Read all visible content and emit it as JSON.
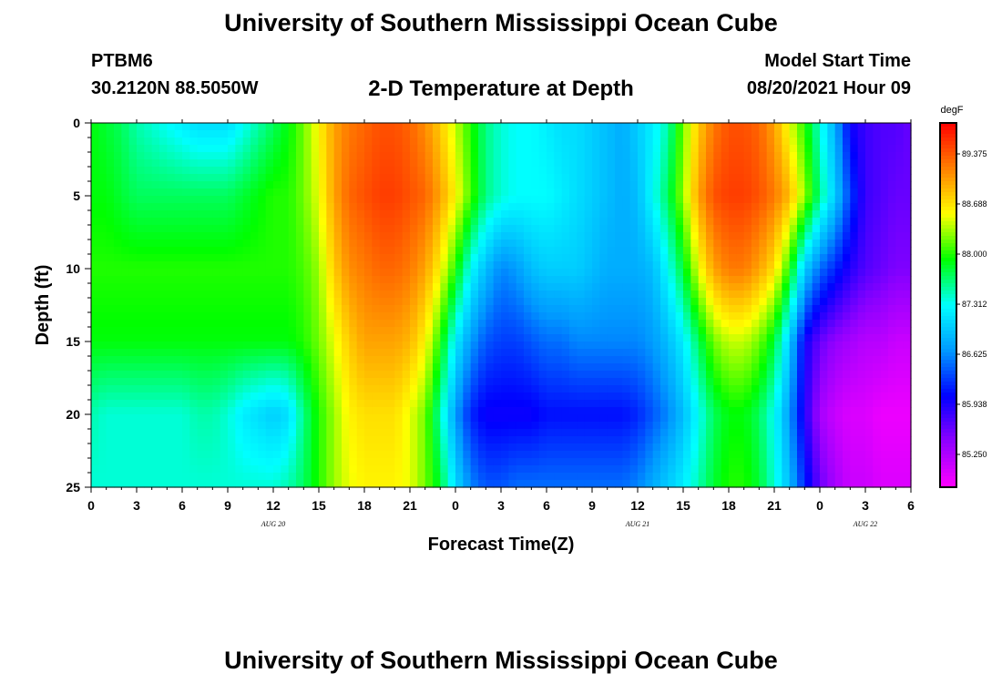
{
  "page": {
    "title_top": "University of Southern Mississippi Ocean Cube",
    "title_bottom": "University of Southern Mississippi Ocean Cube",
    "station_id": "PTBM6",
    "station_coords": "30.2120N  88.5050W",
    "plot_title": "2-D Temperature at Depth",
    "model_start_label": "Model Start Time",
    "model_start_value": "08/20/2021 Hour 09"
  },
  "chart_data": {
    "type": "heatmap",
    "title": "2-D Temperature at Depth",
    "xlabel": "Forecast Time(Z)",
    "ylabel": "Depth (ft)",
    "x_tick_labels": [
      "0",
      "3",
      "6",
      "9",
      "12",
      "15",
      "18",
      "21",
      "0",
      "3",
      "6",
      "9",
      "12",
      "15",
      "18",
      "21",
      "0",
      "3",
      "6"
    ],
    "x_range_hours": [
      0,
      54
    ],
    "date_labels": [
      {
        "text": "AUG 20",
        "at_hour": 12
      },
      {
        "text": "AUG 21",
        "at_hour": 36
      },
      {
        "text": "AUG 22",
        "at_hour": 51
      }
    ],
    "y_tick_labels": [
      "0",
      "5",
      "10",
      "15",
      "20",
      "25"
    ],
    "y_ticks": [
      0,
      5,
      10,
      15,
      20,
      25
    ],
    "ylim": [
      0,
      25
    ],
    "colorbar": {
      "unit": "degF",
      "labels": [
        "89.375",
        "88.688",
        "88.000",
        "87.312",
        "86.625",
        "85.938",
        "85.250"
      ],
      "min": 84.8,
      "max": 89.8
    },
    "hours": [
      0,
      1,
      2,
      3,
      4,
      5,
      6,
      7,
      8,
      9,
      10,
      11,
      12,
      13,
      14,
      15,
      16,
      17,
      18,
      19,
      20,
      21,
      22,
      23,
      24,
      25,
      26,
      27,
      28,
      29,
      30,
      31,
      32,
      33,
      34,
      35,
      36,
      37,
      38,
      39,
      40,
      41,
      42,
      43,
      44,
      45,
      46,
      47,
      48,
      49,
      50,
      51,
      52,
      53,
      54
    ],
    "depths": [
      0,
      5,
      10,
      15,
      20,
      25
    ],
    "values_degF": [
      [
        87.9,
        87.8,
        87.7,
        87.5,
        87.4,
        87.3,
        87.2,
        87.1,
        87.1,
        87.1,
        87.3,
        87.5,
        87.7,
        87.9,
        88.2,
        88.6,
        89.0,
        89.2,
        89.3,
        89.4,
        89.4,
        89.3,
        89.1,
        88.8,
        88.4,
        88.0,
        87.6,
        87.4,
        87.3,
        87.3,
        87.2,
        87.1,
        87.1,
        87.0,
        86.9,
        86.8,
        87.0,
        87.2,
        87.5,
        88.2,
        88.8,
        89.2,
        89.4,
        89.4,
        89.3,
        89.0,
        88.5,
        88.0,
        87.4,
        86.8,
        86.0,
        85.8,
        85.7,
        85.7,
        85.6
      ],
      [
        87.9,
        87.9,
        87.8,
        87.7,
        87.7,
        87.7,
        87.7,
        87.7,
        87.7,
        87.7,
        87.8,
        87.9,
        88.0,
        88.0,
        88.2,
        88.5,
        89.0,
        89.3,
        89.4,
        89.5,
        89.5,
        89.4,
        89.3,
        89.0,
        88.6,
        88.1,
        87.6,
        87.4,
        87.3,
        87.3,
        87.3,
        87.2,
        87.1,
        87.0,
        86.9,
        86.8,
        86.9,
        87.3,
        87.7,
        88.3,
        89.0,
        89.4,
        89.5,
        89.5,
        89.4,
        89.2,
        88.9,
        88.3,
        87.6,
        87.0,
        86.3,
        85.8,
        85.7,
        85.6,
        85.6
      ],
      [
        88.0,
        88.0,
        88.0,
        88.0,
        88.0,
        88.0,
        88.0,
        88.0,
        88.0,
        88.0,
        88.0,
        88.0,
        88.0,
        88.0,
        88.1,
        88.3,
        88.8,
        89.1,
        89.2,
        89.3,
        89.3,
        89.2,
        89.0,
        88.6,
        88.0,
        87.3,
        86.9,
        86.6,
        86.7,
        86.9,
        87.0,
        87.0,
        87.0,
        86.9,
        86.8,
        86.8,
        86.8,
        86.9,
        87.3,
        87.8,
        88.5,
        89.0,
        89.2,
        89.2,
        89.0,
        88.7,
        88.0,
        87.0,
        86.5,
        86.2,
        85.9,
        85.7,
        85.6,
        85.5,
        85.5
      ],
      [
        87.9,
        87.9,
        87.9,
        87.9,
        87.9,
        87.9,
        87.9,
        87.9,
        87.9,
        87.9,
        87.9,
        87.9,
        87.9,
        87.9,
        88.0,
        88.2,
        88.5,
        88.8,
        89.0,
        89.0,
        89.0,
        88.9,
        88.6,
        88.0,
        87.2,
        86.7,
        86.4,
        86.3,
        86.3,
        86.4,
        86.5,
        86.5,
        86.6,
        86.6,
        86.6,
        86.6,
        86.6,
        86.7,
        86.9,
        87.2,
        87.7,
        88.2,
        88.4,
        88.4,
        88.2,
        87.8,
        87.0,
        86.0,
        85.6,
        85.4,
        85.3,
        85.2,
        85.2,
        85.1,
        85.1
      ],
      [
        87.5,
        87.4,
        87.4,
        87.4,
        87.4,
        87.4,
        87.4,
        87.5,
        87.5,
        87.4,
        87.2,
        87.1,
        87.0,
        87.1,
        87.6,
        88.0,
        88.3,
        88.6,
        88.7,
        88.7,
        88.7,
        88.5,
        88.2,
        87.5,
        86.7,
        86.2,
        86.0,
        86.0,
        86.0,
        86.0,
        86.1,
        86.1,
        86.1,
        86.1,
        86.1,
        86.1,
        86.2,
        86.4,
        86.6,
        86.9,
        87.3,
        87.7,
        87.9,
        87.9,
        87.7,
        87.3,
        86.7,
        85.9,
        85.3,
        85.1,
        85.0,
        85.0,
        84.9,
        84.9,
        84.9
      ],
      [
        87.4,
        87.4,
        87.4,
        87.4,
        87.4,
        87.4,
        87.4,
        87.4,
        87.4,
        87.4,
        87.4,
        87.4,
        87.4,
        87.5,
        87.7,
        88.0,
        88.3,
        88.5,
        88.6,
        88.6,
        88.6,
        88.5,
        88.2,
        87.8,
        87.1,
        86.6,
        86.4,
        86.4,
        86.5,
        86.5,
        86.5,
        86.5,
        86.5,
        86.5,
        86.5,
        86.5,
        86.6,
        86.8,
        87.0,
        87.2,
        87.5,
        87.8,
        88.0,
        88.0,
        87.8,
        87.4,
        86.9,
        86.2,
        85.6,
        85.3,
        85.1,
        85.1,
        85.0,
        85.0,
        85.0
      ]
    ]
  },
  "colors": {
    "colormap": [
      "#ff00ff",
      "#8f00ff",
      "#0000ff",
      "#0099ff",
      "#00ffff",
      "#00ff00",
      "#ffff00",
      "#ff7f00",
      "#ff0000"
    ]
  }
}
